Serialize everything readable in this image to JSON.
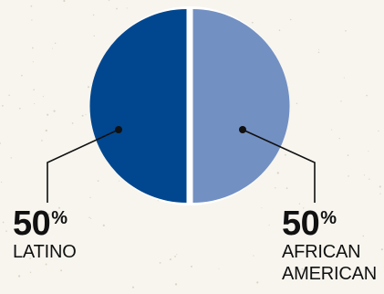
{
  "chart_data": {
    "type": "pie",
    "title": "",
    "series": [
      {
        "name": "Latino",
        "value": 50,
        "color": "#00478f",
        "percent_text": "50",
        "percent_symbol": "%",
        "category_label": "LATINO"
      },
      {
        "name": "African American",
        "value": 50,
        "color": "#7390c3",
        "percent_text": "50",
        "percent_symbol": "%",
        "category_label": "AFRICAN AMERICAN"
      }
    ],
    "separator_color": "#ffffff",
    "background": "#f7f5ee"
  }
}
